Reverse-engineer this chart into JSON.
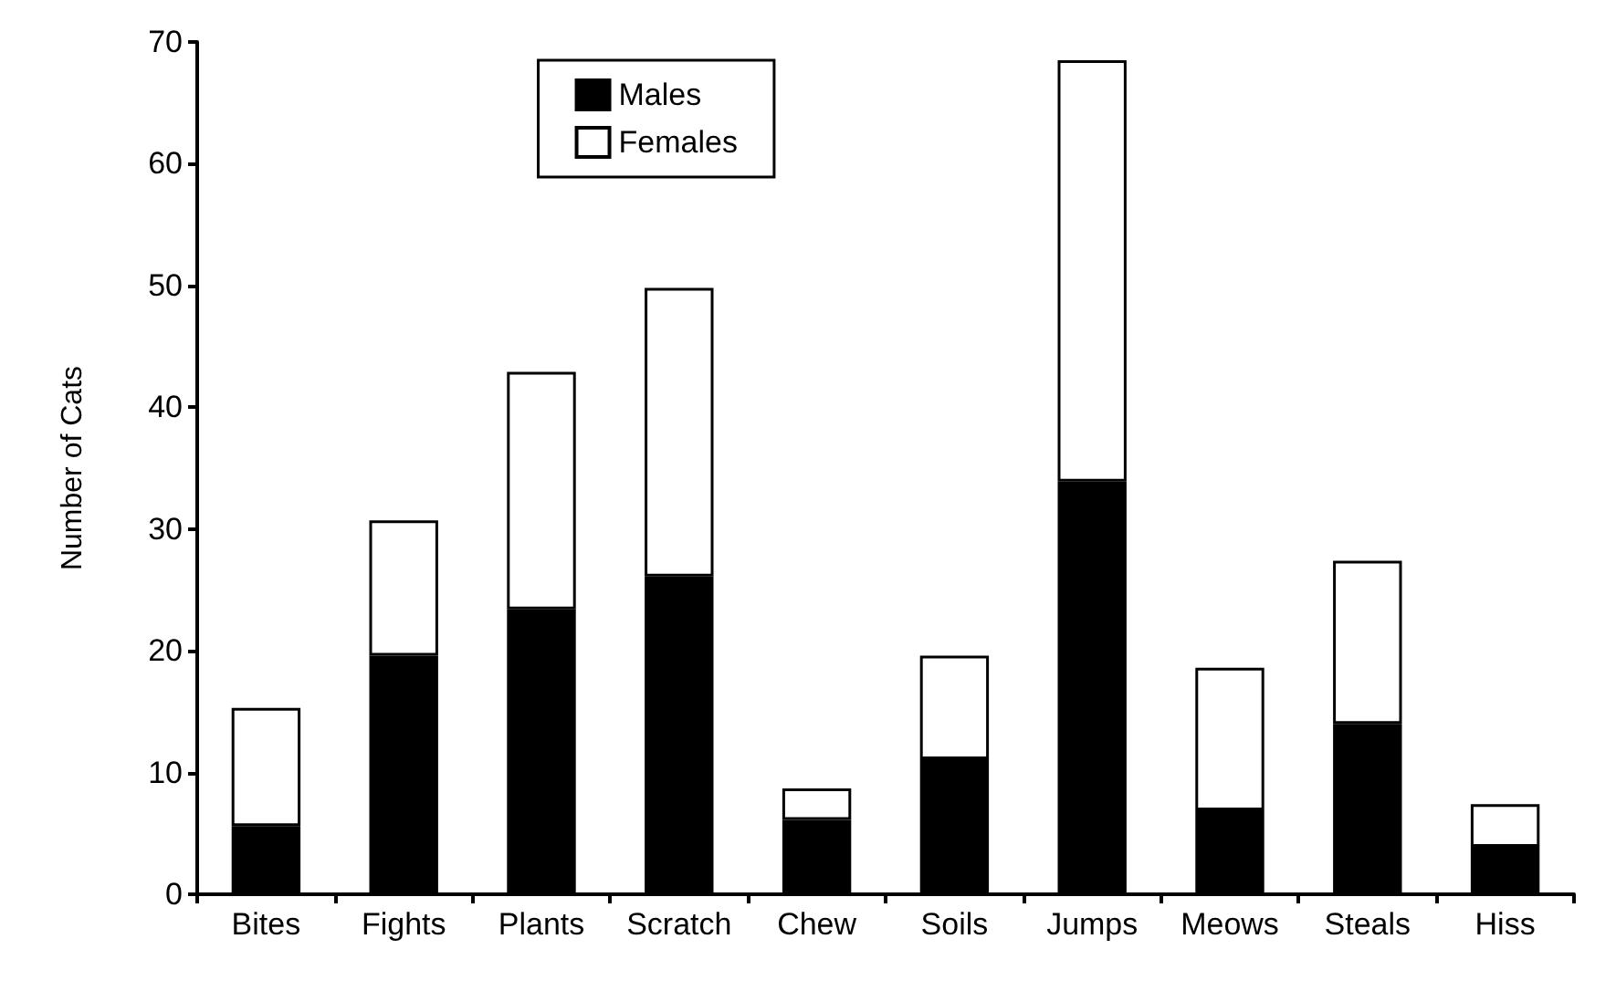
{
  "chart_data": {
    "type": "bar",
    "ylabel": "Number of Cats",
    "categories": [
      "Bites",
      "Fights",
      "Plants",
      "Scratch",
      "Chew",
      "Soils",
      "Jumps",
      "Meows",
      "Steals",
      "Hiss"
    ],
    "series": [
      {
        "name": "Males",
        "color": "#000000",
        "values": [
          5.6,
          19.6,
          23.4,
          26.1,
          6.1,
          11.1,
          33.9,
          6.9,
          14.0,
          3.9
        ]
      },
      {
        "name": "Females",
        "color": "#ffffff",
        "values": [
          9.7,
          11.1,
          19.5,
          23.7,
          2.6,
          8.5,
          34.6,
          11.7,
          13.4,
          3.5
        ]
      }
    ],
    "stacked": true,
    "ylim": [
      0,
      70
    ],
    "yticks": [
      0,
      10,
      20,
      30,
      40,
      50,
      60,
      70
    ],
    "grid": false,
    "legend": "top"
  }
}
